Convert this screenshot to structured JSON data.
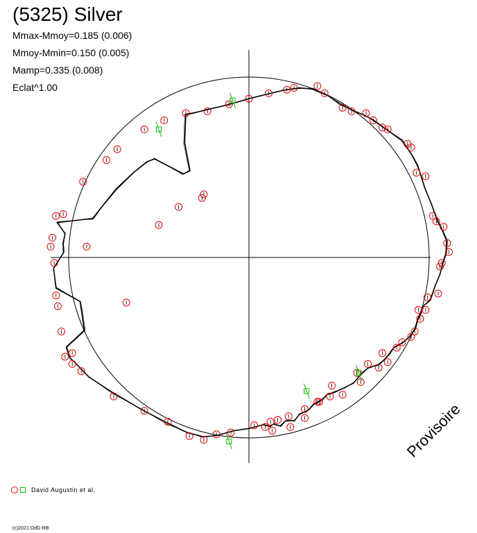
{
  "header": {
    "title": "(5325) Silver",
    "stats": [
      "Mmax-Mmoy=0.185 (0.006)",
      "Mmoy-Mmin=0.150 (0.005)",
      "Mamp=0.335 (0.008)",
      "Eclat^1.00"
    ]
  },
  "legend": {
    "observer": "David Augustin et al."
  },
  "footer": {
    "copyright": "(c)2021 OdG-RB",
    "watermark": "Provisoire"
  },
  "colors": {
    "observation": "#e00000",
    "green_points": "#00c000",
    "curve": "#000000"
  },
  "chart_data": {
    "type": "scatter",
    "projection": "polar",
    "xlim": [
      -1.1,
      1.1
    ],
    "ylim": [
      -1.1,
      1.1
    ],
    "grid": false,
    "reference_circle_radius": 1.0,
    "legend_position": "bottom-left",
    "series": [
      {
        "name": "David Augustin et al.",
        "marker": "circle",
        "color": "#e00000",
        "x": [
          -0.98,
          -1.02,
          -1.06,
          -1.07,
          -1.08,
          -1.1,
          -1.09,
          -1.07,
          -1.03,
          -0.92,
          -0.79,
          -0.73,
          -0.58,
          -0.47,
          -0.35,
          -0.23,
          -0.11,
          0.0,
          0.11,
          0.21,
          0.25,
          0.38,
          0.42,
          0.52,
          0.57,
          0.65,
          0.69,
          0.74,
          0.77,
          0.88,
          0.9,
          0.93,
          0.98,
          1.02,
          1.04,
          1.08,
          1.1,
          1.11,
          1.07,
          1.06,
          1.05,
          0.99,
          0.98,
          0.95,
          0.92,
          0.9,
          0.85,
          0.82,
          0.77,
          0.72,
          0.62,
          0.52,
          0.45,
          0.38,
          0.31,
          0.22,
          0.16,
          0.12,
          0.03,
          -0.1,
          -0.18,
          -0.25,
          -0.33,
          -0.45,
          -0.58,
          -0.75,
          -0.93,
          -0.98,
          -1.04,
          -0.9,
          -0.68,
          -0.5,
          -0.39,
          -0.25,
          -0.26,
          0.09,
          0.13,
          0.23,
          0.31,
          0.39,
          0.46,
          0.6,
          0.66,
          0.74,
          0.94
        ],
        "y": [
          -0.53,
          -0.55,
          -0.27,
          -0.21,
          -0.03,
          0.06,
          0.11,
          0.23,
          0.24,
          0.42,
          0.54,
          0.6,
          0.71,
          0.76,
          0.8,
          0.81,
          0.85,
          0.88,
          0.91,
          0.93,
          0.94,
          0.95,
          0.91,
          0.83,
          0.81,
          0.8,
          0.76,
          0.72,
          0.71,
          0.63,
          0.61,
          0.47,
          0.45,
          0.23,
          0.2,
          0.17,
          0.08,
          0.03,
          -0.03,
          -0.05,
          -0.2,
          -0.22,
          -0.29,
          -0.34,
          -0.41,
          -0.44,
          -0.47,
          -0.5,
          -0.58,
          -0.61,
          -0.69,
          -0.76,
          -0.77,
          -0.8,
          -0.84,
          -0.88,
          -0.9,
          -0.91,
          -0.93,
          -0.97,
          -0.98,
          -1.01,
          -0.99,
          -0.91,
          -0.85,
          -0.77,
          -0.63,
          -0.59,
          -0.41,
          0.06,
          -0.25,
          0.18,
          0.28,
          0.35,
          0.33,
          -0.94,
          -0.96,
          -0.94,
          -0.89,
          -0.8,
          -0.71,
          -0.64,
          -0.59,
          -0.53,
          -0.29
        ]
      },
      {
        "marker": "square",
        "color": "#00c000",
        "x": [
          -0.5,
          -0.09,
          -0.11,
          0.32,
          0.61
        ],
        "y": [
          0.71,
          0.87,
          -1.02,
          -0.74,
          -0.64
        ]
      }
    ]
  }
}
